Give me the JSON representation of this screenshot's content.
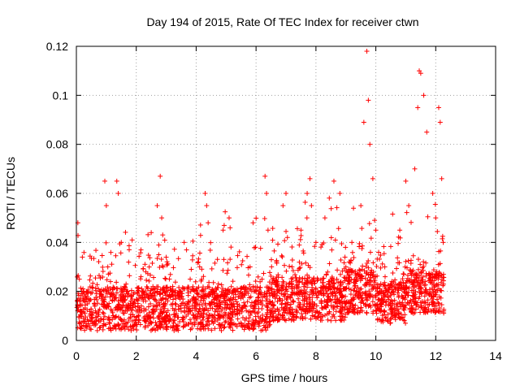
{
  "chart_data": {
    "type": "scatter",
    "title": "Day 194 of 2015, Rate Of TEC Index for receiver ctwn",
    "xlabel": "GPS time / hours",
    "ylabel": "ROTI / TECUs",
    "xlim": [
      0,
      14
    ],
    "ylim": [
      0,
      0.12
    ],
    "x_ticks": [
      0,
      2,
      4,
      6,
      8,
      10,
      12,
      14
    ],
    "x_tick_labels": [
      "0",
      "2",
      "4",
      "6",
      "8",
      "10",
      "12",
      "14"
    ],
    "y_ticks": [
      0,
      0.02,
      0.04,
      0.06,
      0.08,
      0.1,
      0.12
    ],
    "y_tick_labels": [
      "0",
      "0.02",
      "0.04",
      "0.06",
      "0.08",
      "0.1",
      "0.12"
    ],
    "grid": true,
    "marker": "+",
    "color": "#ff0000",
    "series": [
      {
        "name": "ROTI",
        "x": [
          0.05,
          0.1,
          0.15,
          0.2,
          0.3,
          0.45,
          0.6,
          0.8,
          0.95,
          1.0,
          1.05,
          1.2,
          1.35,
          1.4,
          1.5,
          1.6,
          1.8,
          2.0,
          2.2,
          2.5,
          2.7,
          2.8,
          2.85,
          2.9,
          3.0,
          3.3,
          3.6,
          3.8,
          4.0,
          4.3,
          4.35,
          4.4,
          4.6,
          4.9,
          5.1,
          5.4,
          5.8,
          5.9,
          6.0,
          6.2,
          6.3,
          6.35,
          6.4,
          6.6,
          6.9,
          7.0,
          7.2,
          7.5,
          7.7,
          7.8,
          7.85,
          8.0,
          8.3,
          8.6,
          8.8,
          9.0,
          9.2,
          9.5,
          9.6,
          9.7,
          9.75,
          9.8,
          9.9,
          10.0,
          10.3,
          10.6,
          10.8,
          11.0,
          11.1,
          11.3,
          11.4,
          11.45,
          11.5,
          11.6,
          11.7,
          11.9,
          12.0,
          12.1,
          12.15,
          12.2,
          12.25
        ],
        "y": [
          0.048,
          0.025,
          0.012,
          0.034,
          0.018,
          0.01,
          0.015,
          0.02,
          0.065,
          0.055,
          0.03,
          0.018,
          0.065,
          0.06,
          0.04,
          0.022,
          0.015,
          0.012,
          0.02,
          0.044,
          0.055,
          0.067,
          0.05,
          0.03,
          0.02,
          0.015,
          0.04,
          0.025,
          0.015,
          0.06,
          0.055,
          0.048,
          0.02,
          0.045,
          0.05,
          0.02,
          0.03,
          0.048,
          0.02,
          0.025,
          0.067,
          0.06,
          0.045,
          0.02,
          0.055,
          0.06,
          0.03,
          0.045,
          0.05,
          0.066,
          0.055,
          0.04,
          0.05,
          0.065,
          0.06,
          0.03,
          0.04,
          0.055,
          0.089,
          0.118,
          0.098,
          0.08,
          0.066,
          0.045,
          0.03,
          0.02,
          0.045,
          0.065,
          0.055,
          0.07,
          0.095,
          0.11,
          0.109,
          0.1,
          0.085,
          0.06,
          0.05,
          0.095,
          0.089,
          0.066,
          0.04
        ]
      }
    ]
  }
}
